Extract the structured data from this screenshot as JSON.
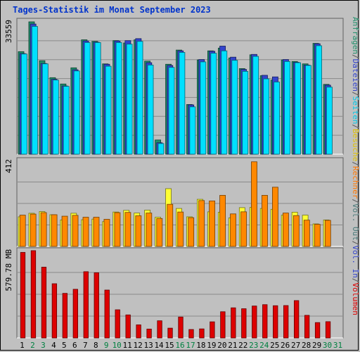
{
  "title": "Tages-Statistik im Monat September 2023",
  "colors": {
    "anfragen": "#1f8f6a",
    "dateien": "#3344cc",
    "seiten": "#00e0ff",
    "besuche": "#ffff33",
    "rechner": "#ff8800",
    "vol_out": "#4a7a7a",
    "vol_in": "#3344cc",
    "volumen": "#dd0000",
    "background": "#c0c0c0",
    "grid": "#8a8a8a",
    "day_weekday": "#000000",
    "day_weekend": "#008040",
    "title": "#0033cc"
  },
  "right_labels": {
    "top": [
      {
        "text": "Anfragen",
        "color": "#1f8f6a"
      },
      {
        "text": "/",
        "color": "#555555"
      },
      {
        "text": "Dateien",
        "color": "#3344cc"
      },
      {
        "text": "/",
        "color": "#555555"
      },
      {
        "text": "Seiten",
        "color": "#00c8e8"
      },
      {
        "text": "/",
        "color": "#555555"
      },
      {
        "text": "Besuche",
        "color": "#e0c000"
      },
      {
        "text": "/",
        "color": "#555555"
      },
      {
        "text": "Rechner",
        "color": "#ff7700"
      },
      {
        "text": "/",
        "color": "#555555"
      },
      {
        "text": "Vol. Out",
        "color": "#4a7a7a"
      },
      {
        "text": "/",
        "color": "#555555"
      },
      {
        "text": "Vol. In",
        "color": "#3344cc"
      },
      {
        "text": "/",
        "color": "#555555"
      },
      {
        "text": "Volumen",
        "color": "#dd0000"
      }
    ]
  },
  "chart_data": [
    {
      "type": "bar",
      "panel": "top",
      "ymax_label": "33559",
      "ylim": [
        0,
        33559
      ],
      "categories": [
        "1",
        "2",
        "3",
        "4",
        "5",
        "6",
        "7",
        "8",
        "9",
        "10",
        "11",
        "12",
        "13",
        "14",
        "15",
        "16",
        "17",
        "18",
        "19",
        "20",
        "21",
        "22",
        "23",
        "24",
        "25",
        "26",
        "27",
        "28",
        "29",
        "30",
        "31"
      ],
      "series": [
        {
          "name": "Anfragen",
          "values": [
            26000,
            33559,
            23700,
            19400,
            17800,
            21900,
            29000,
            28600,
            22900,
            28800,
            28200,
            29000,
            23600,
            3600,
            22800,
            26400,
            12600,
            23900,
            26200,
            26900,
            24400,
            21700,
            25200,
            19900,
            18800,
            23900,
            23500,
            22900,
            28100,
            17700,
            0
          ]
        },
        {
          "name": "Dateien",
          "values": [
            25500,
            33000,
            23000,
            19000,
            17300,
            21400,
            28700,
            28400,
            22800,
            28700,
            28800,
            29300,
            23200,
            2900,
            22500,
            26200,
            12500,
            24000,
            26100,
            27400,
            24600,
            21500,
            25300,
            20000,
            19600,
            24000,
            23300,
            22600,
            28000,
            17500,
            0
          ]
        },
        {
          "name": "Seiten",
          "values": [
            25400,
            32400,
            22900,
            18800,
            17200,
            21100,
            28300,
            28300,
            22300,
            28300,
            27900,
            28600,
            22600,
            2700,
            22000,
            25800,
            12000,
            23400,
            25600,
            26200,
            23800,
            21000,
            24800,
            19100,
            18300,
            23500,
            23200,
            22500,
            27500,
            17000,
            0
          ]
        }
      ]
    },
    {
      "type": "bar",
      "panel": "middle",
      "ymax_label": "412",
      "ylim": [
        0,
        412
      ],
      "categories": [
        "1",
        "2",
        "3",
        "4",
        "5",
        "6",
        "7",
        "8",
        "9",
        "10",
        "11",
        "12",
        "13",
        "14",
        "15",
        "16",
        "17",
        "18",
        "19",
        "20",
        "21",
        "22",
        "23",
        "24",
        "25",
        "26",
        "27",
        "28",
        "29",
        "30",
        "31"
      ],
      "series": [
        {
          "name": "Besuche",
          "values": [
            142,
            159,
            167,
            152,
            127,
            159,
            128,
            131,
            119,
            165,
            173,
            160,
            174,
            140,
            277,
            182,
            142,
            226,
            166,
            164,
            137,
            186,
            187,
            182,
            178,
            150,
            164,
            150,
            108,
            127,
            0
          ]
        },
        {
          "name": "Rechner",
          "values": [
            150,
            155,
            162,
            152,
            145,
            149,
            140,
            140,
            130,
            162,
            163,
            147,
            160,
            134,
            202,
            165,
            138,
            220,
            218,
            245,
            156,
            166,
            406,
            245,
            284,
            160,
            148,
            126,
            106,
            125,
            0
          ]
        }
      ]
    },
    {
      "type": "bar",
      "panel": "bottom",
      "ymax_label": "579.78 MB",
      "ylim": [
        0,
        579.78
      ],
      "categories": [
        "1",
        "2",
        "3",
        "4",
        "5",
        "6",
        "7",
        "8",
        "9",
        "10",
        "11",
        "12",
        "13",
        "14",
        "15",
        "16",
        "17",
        "18",
        "19",
        "20",
        "21",
        "22",
        "23",
        "24",
        "25",
        "26",
        "27",
        "28",
        "29",
        "30",
        "31"
      ],
      "series": [
        {
          "name": "Volumen",
          "values": [
            568,
            579.78,
            470,
            360,
            296,
            323,
            440,
            433,
            318,
            187,
            153,
            87,
            59,
            114,
            65,
            139,
            56,
            60,
            107,
            174,
            200,
            194,
            212,
            221,
            214,
            215,
            248,
            150,
            102,
            108,
            0
          ]
        }
      ]
    }
  ],
  "days": [
    {
      "label": "1",
      "weekend": false
    },
    {
      "label": "2",
      "weekend": true
    },
    {
      "label": "3",
      "weekend": true
    },
    {
      "label": "4",
      "weekend": false
    },
    {
      "label": "5",
      "weekend": false
    },
    {
      "label": "6",
      "weekend": false
    },
    {
      "label": "7",
      "weekend": false
    },
    {
      "label": "8",
      "weekend": false
    },
    {
      "label": "9",
      "weekend": true
    },
    {
      "label": "10",
      "weekend": true
    },
    {
      "label": "11",
      "weekend": false
    },
    {
      "label": "12",
      "weekend": false
    },
    {
      "label": "13",
      "weekend": false
    },
    {
      "label": "14",
      "weekend": false
    },
    {
      "label": "15",
      "weekend": false
    },
    {
      "label": "16",
      "weekend": true
    },
    {
      "label": "17",
      "weekend": true
    },
    {
      "label": "18",
      "weekend": false
    },
    {
      "label": "19",
      "weekend": false
    },
    {
      "label": "20",
      "weekend": false
    },
    {
      "label": "21",
      "weekend": false
    },
    {
      "label": "22",
      "weekend": false
    },
    {
      "label": "23",
      "weekend": true
    },
    {
      "label": "24",
      "weekend": true
    },
    {
      "label": "25",
      "weekend": false
    },
    {
      "label": "26",
      "weekend": false
    },
    {
      "label": "27",
      "weekend": false
    },
    {
      "label": "28",
      "weekend": false
    },
    {
      "label": "29",
      "weekend": false
    },
    {
      "label": "30",
      "weekend": true
    },
    {
      "label": "31",
      "weekend": true
    }
  ]
}
